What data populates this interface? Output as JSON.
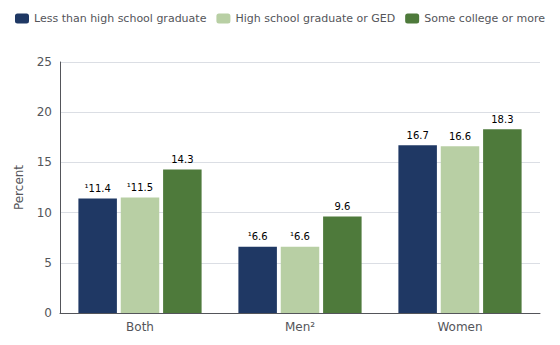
{
  "chart_data": {
    "type": "bar",
    "categories": [
      "Both",
      "Men²",
      "Women"
    ],
    "series": [
      {
        "name": "Less than high school graduate",
        "color": "#1f3864",
        "values": [
          11.4,
          6.6,
          16.7
        ],
        "value_labels": [
          "¹11.4",
          "¹6.6",
          "16.7"
        ]
      },
      {
        "name": "High school graduate or GED",
        "color": "#b8cfa4",
        "values": [
          11.5,
          6.6,
          16.6
        ],
        "value_labels": [
          "¹11.5",
          "¹6.6",
          "16.6"
        ]
      },
      {
        "name": "Some college or more",
        "color": "#4e7a3b",
        "values": [
          14.3,
          9.6,
          18.3
        ],
        "value_labels": [
          "14.3",
          "9.6",
          "18.3"
        ]
      }
    ],
    "ylabel": "Percent",
    "ylim": [
      0,
      25
    ],
    "yticks": [
      0,
      5,
      10,
      15,
      20,
      25
    ],
    "grid": true,
    "data_labels": true,
    "legend": "top"
  }
}
